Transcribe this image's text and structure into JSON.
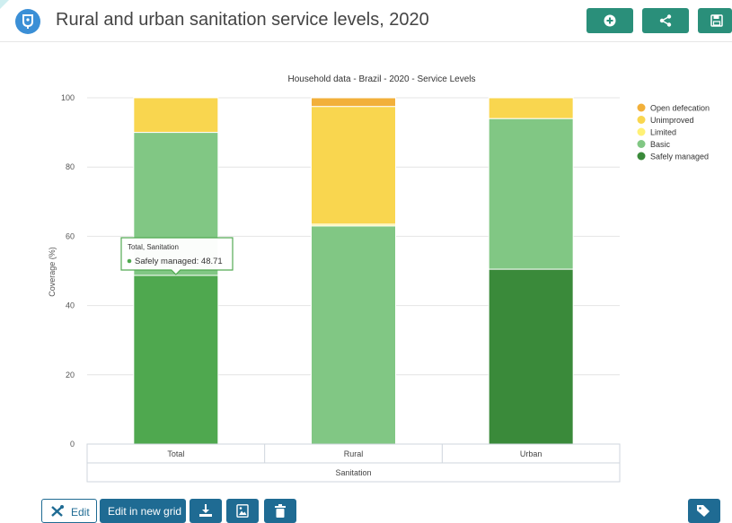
{
  "header": {
    "title": "Rural and urban sanitation service levels, 2020",
    "actions": [
      {
        "icon": "plus-circle-icon",
        "color": "#2a8f7a"
      },
      {
        "icon": "share-icon",
        "color": "#2a8f7a"
      },
      {
        "icon": "save-icon",
        "color": "#2a8f7a"
      }
    ]
  },
  "chart_data": {
    "type": "bar",
    "stacked": true,
    "title": "Household data - Brazil - 2020 - Service Levels",
    "xlabel": "",
    "ylabel": "Coverage (%)",
    "ylim": [
      0,
      100
    ],
    "yticks": [
      0,
      20,
      40,
      60,
      80,
      100
    ],
    "categories": [
      "Total",
      "Rural",
      "Urban"
    ],
    "group_label": "Sanitation",
    "grid": true,
    "legend_position": "top-right",
    "series": [
      {
        "name": "Safely managed",
        "color_total": "#4fa84f",
        "color": "#3a8a3a",
        "values": [
          48.71,
          0,
          50.5
        ]
      },
      {
        "name": "Basic",
        "color": "#81c784",
        "values": [
          41.3,
          63,
          43.5
        ]
      },
      {
        "name": "Limited",
        "color": "#fff176",
        "values": [
          0,
          0.5,
          0
        ]
      },
      {
        "name": "Unimproved",
        "color": "#f9d64f",
        "values": [
          10,
          34,
          6
        ]
      },
      {
        "name": "Open defecation",
        "color": "#f2b03a",
        "values": [
          0,
          2.5,
          0
        ]
      }
    ],
    "legend_order": [
      "Open defecation",
      "Unimproved",
      "Limited",
      "Basic",
      "Safely managed"
    ],
    "tooltip": {
      "heading": "Total, Sanitation",
      "series": "Safely managed",
      "value": "48.71",
      "text": "Safely managed: 48.71"
    }
  },
  "toolbar": {
    "edit_label": "Edit",
    "edit_grid_label": "Edit in new grid",
    "icons": [
      "tools-icon",
      "download-icon",
      "image-icon",
      "trash-icon",
      "tag-icon"
    ]
  }
}
